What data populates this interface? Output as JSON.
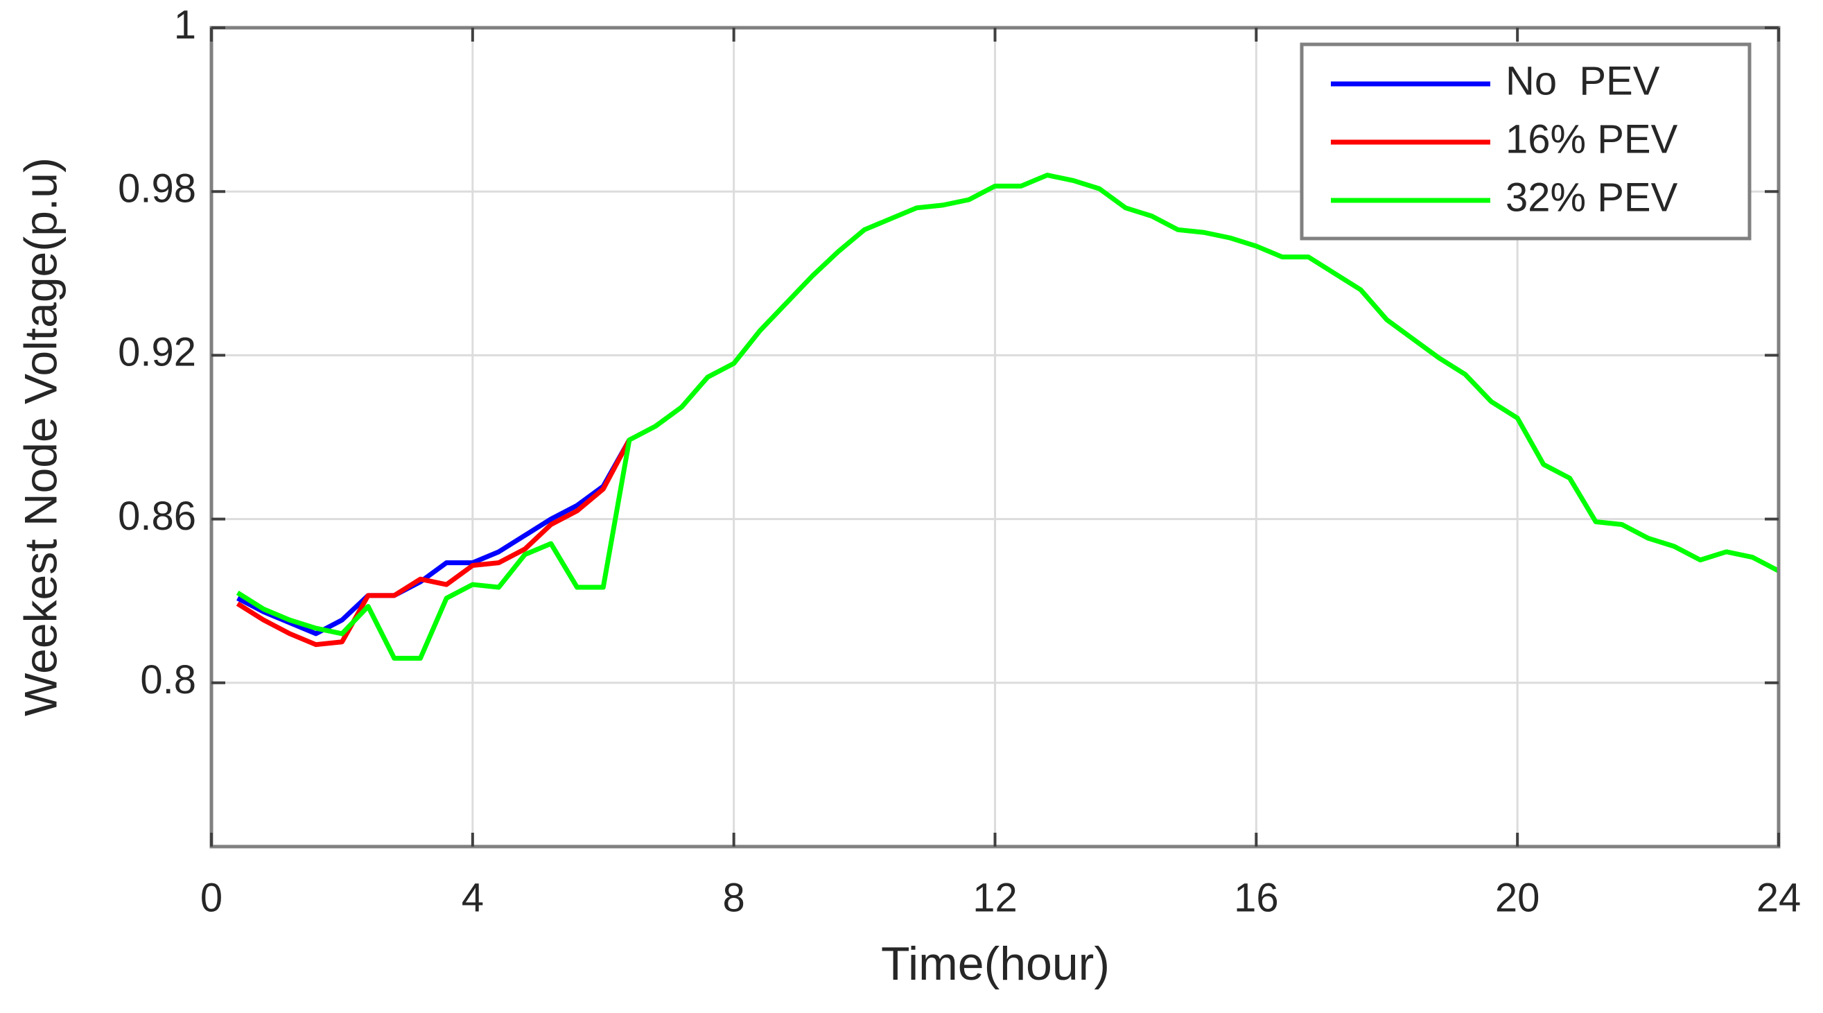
{
  "chart_data": {
    "type": "line",
    "xlabel": "Time(hour)",
    "ylabel": "Weekest Node Voltage(p.u)",
    "x": [
      0.4,
      0.8,
      1.2,
      1.6,
      2.0,
      2.4,
      2.8,
      3.2,
      3.6,
      4.0,
      4.4,
      4.8,
      5.2,
      5.6,
      6.0,
      6.4,
      6.8,
      7.2,
      7.6,
      8.0,
      8.4,
      8.8,
      9.2,
      9.6,
      10.0,
      10.4,
      10.8,
      11.2,
      11.6,
      12.0,
      12.4,
      12.8,
      13.2,
      13.6,
      14.0,
      14.4,
      14.8,
      15.2,
      15.6,
      16.0,
      16.4,
      16.8,
      17.2,
      17.6,
      18.0,
      18.4,
      18.8,
      19.2,
      19.6,
      20.0,
      20.4,
      20.8,
      21.2,
      21.6,
      22.0,
      22.4,
      22.8,
      23.2,
      23.6,
      24.0
    ],
    "series": [
      {
        "name": "No  PEV",
        "color": "#0000ff",
        "values": [
          0.831,
          0.826,
          0.822,
          0.818,
          0.823,
          0.832,
          0.832,
          0.837,
          0.844,
          0.844,
          0.848,
          0.854,
          0.86,
          0.865,
          0.872,
          0.889,
          null,
          null,
          null,
          null,
          null,
          null,
          null,
          null,
          null,
          null,
          null,
          null,
          null,
          null,
          null,
          null,
          null,
          null,
          null,
          null,
          null,
          null,
          null,
          null,
          null,
          null,
          null,
          null,
          null,
          null,
          null,
          null,
          null,
          null,
          null,
          null,
          null,
          null,
          null,
          null,
          null,
          null,
          null,
          null
        ]
      },
      {
        "name": "16% PEV",
        "color": "#ff0000",
        "values": [
          0.829,
          0.823,
          0.818,
          0.814,
          0.815,
          0.832,
          0.832,
          0.838,
          0.836,
          0.843,
          0.844,
          0.849,
          0.858,
          0.863,
          0.871,
          0.889,
          null,
          null,
          null,
          null,
          null,
          null,
          null,
          null,
          null,
          null,
          null,
          null,
          null,
          null,
          null,
          null,
          null,
          null,
          null,
          null,
          null,
          null,
          null,
          null,
          null,
          null,
          null,
          null,
          null,
          null,
          null,
          null,
          null,
          null,
          null,
          null,
          null,
          null,
          null,
          null,
          null,
          null,
          null,
          null
        ]
      },
      {
        "name": "32% PEV",
        "color": "#00ff00",
        "values": [
          0.833,
          0.827,
          0.823,
          0.82,
          0.818,
          0.828,
          0.809,
          0.809,
          0.831,
          0.836,
          0.835,
          0.847,
          0.851,
          0.835,
          0.835,
          0.889,
          0.894,
          0.901,
          0.912,
          0.917,
          0.929,
          0.939,
          0.949,
          0.958,
          0.966,
          0.97,
          0.974,
          0.975,
          0.977,
          0.982,
          0.982,
          0.986,
          0.984,
          0.981,
          0.974,
          0.971,
          0.966,
          0.965,
          0.963,
          0.96,
          0.956,
          0.956,
          0.95,
          0.944,
          0.933,
          0.926,
          0.919,
          0.913,
          0.903,
          0.897,
          0.88,
          0.875,
          0.859,
          0.858,
          0.853,
          0.85,
          0.845,
          0.848,
          0.846,
          0.841
        ]
      }
    ],
    "xlim": [
      0,
      24
    ],
    "xticks": [
      0,
      4,
      8,
      12,
      16,
      20,
      24
    ],
    "ylim": [
      0.74,
      1.04
    ],
    "yticks": [
      0.8,
      0.86,
      0.92,
      0.98,
      {
        "value": 1.04,
        "label": "1"
      }
    ],
    "grid": true,
    "legend": "upper right"
  }
}
